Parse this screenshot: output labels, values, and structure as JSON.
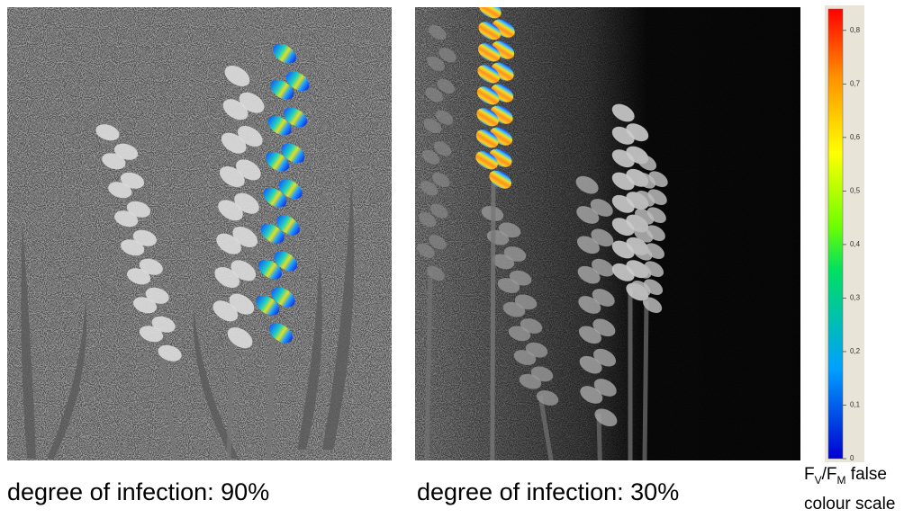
{
  "panels": [
    {
      "caption": "degree of infection: 90%"
    },
    {
      "caption": "degree of infection: 30%"
    }
  ],
  "colorbar": {
    "range": [
      0,
      0.84
    ],
    "ticks": [
      {
        "value": 0,
        "label": "0"
      },
      {
        "value": 0.1,
        "label": "0,1"
      },
      {
        "value": 0.2,
        "label": "0,2"
      },
      {
        "value": 0.3,
        "label": "0,3"
      },
      {
        "value": 0.4,
        "label": "0,4"
      },
      {
        "value": 0.5,
        "label": "0,5"
      },
      {
        "value": 0.6,
        "label": "0,6"
      },
      {
        "value": 0.7,
        "label": "0,7"
      },
      {
        "value": 0.8,
        "label": "0,8"
      }
    ],
    "label": {
      "f1": "F",
      "sub1": "V",
      "f2": "/F",
      "sub2": "M",
      "rest": " false",
      "line2": "colour scale"
    }
  }
}
